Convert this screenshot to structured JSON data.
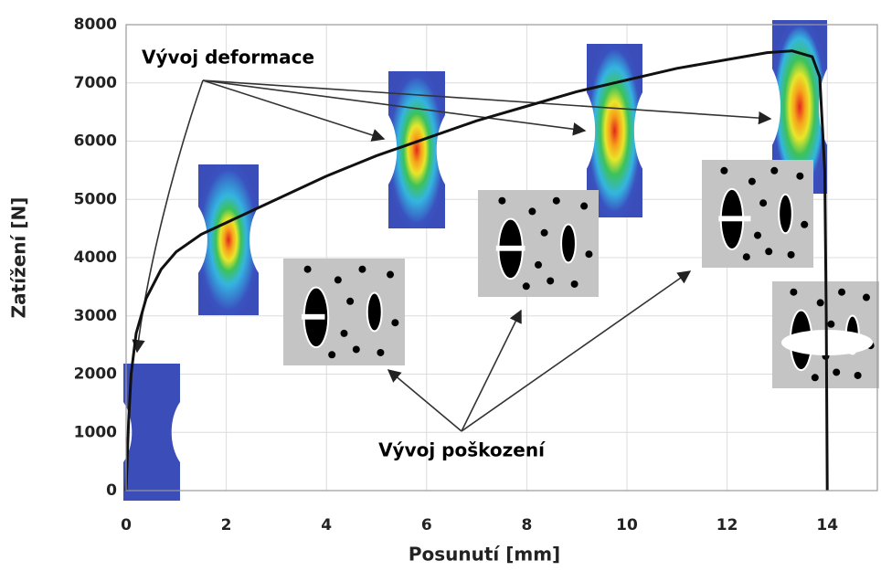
{
  "chart_data": {
    "type": "line",
    "x_label": "Posunutí [mm]",
    "y_label": "Zatížení [N]",
    "annotations": [
      "Vývoj deformace",
      "Vývoj poškození"
    ],
    "x": [
      0,
      0.05,
      0.1,
      0.2,
      0.4,
      0.7,
      1,
      1.5,
      2,
      3,
      4,
      5,
      6,
      7,
      8,
      9,
      10,
      11,
      12,
      12.8,
      13.3,
      13.7,
      13.85,
      13.95,
      13.98,
      14
    ],
    "series": [
      {
        "color": "#111111",
        "values": [
          0,
          1200,
          2000,
          2700,
          3300,
          3800,
          4100,
          4400,
          4600,
          5000,
          5400,
          5750,
          6050,
          6350,
          6600,
          6850,
          7050,
          7250,
          7400,
          7520,
          7550,
          7450,
          7100,
          5500,
          3000,
          0
        ]
      }
    ],
    "xlim": [
      0,
      15
    ],
    "ylim": [
      0,
      8000
    ],
    "xticks": [
      0,
      2,
      4,
      6,
      8,
      10,
      12,
      14
    ],
    "yticks": [
      0,
      1000,
      2000,
      3000,
      4000,
      5000,
      6000,
      7000,
      8000
    ],
    "grid": true
  }
}
